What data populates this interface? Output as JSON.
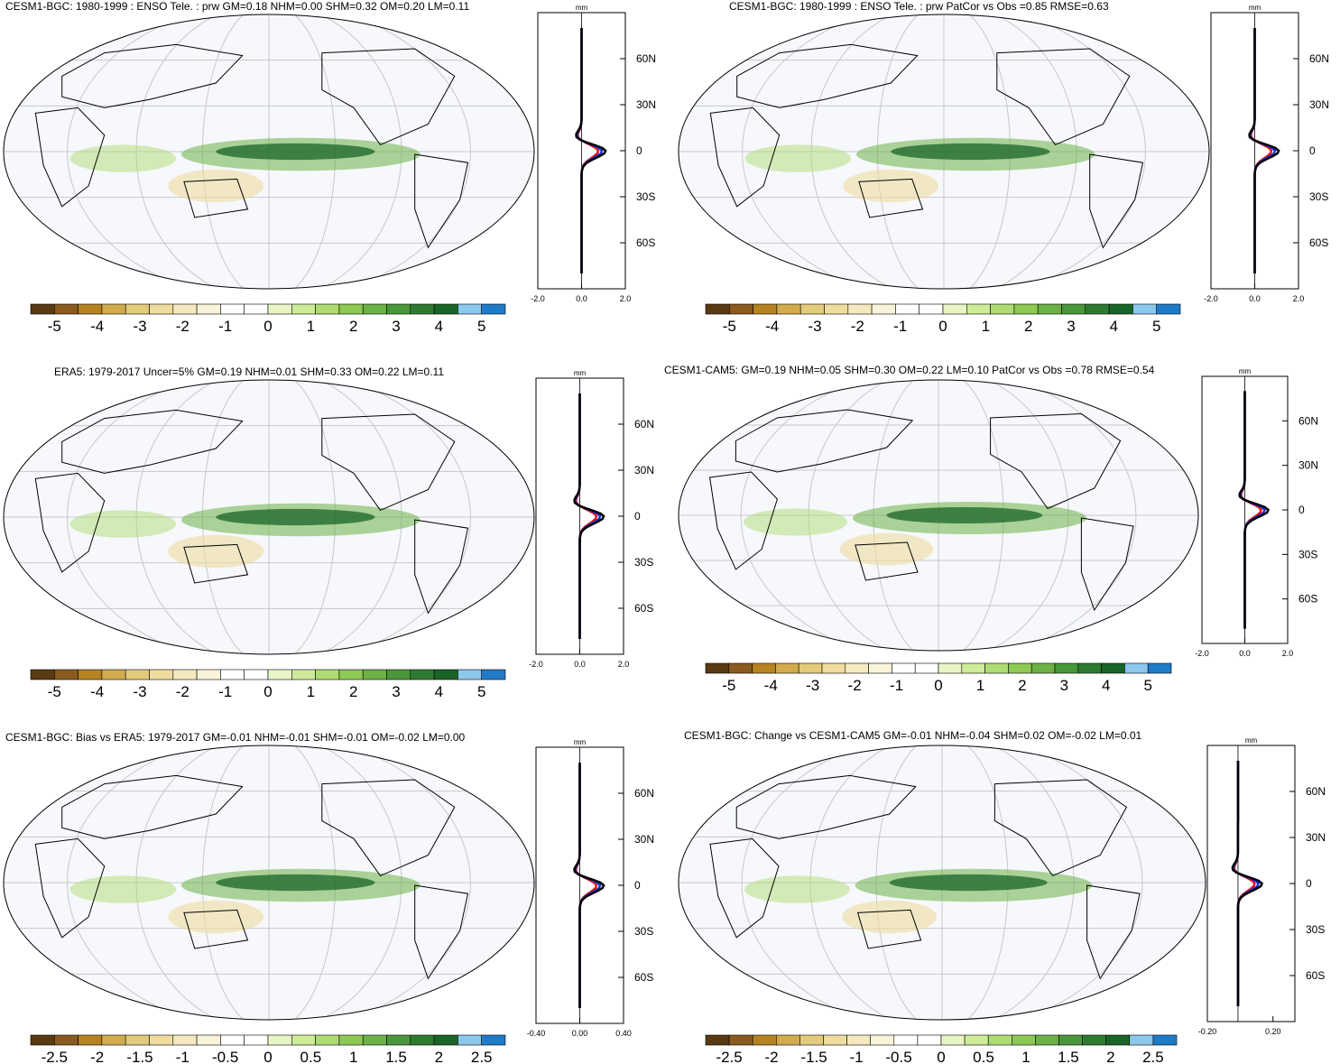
{
  "palette": {
    "colors": [
      "#5a3a12",
      "#8a5a1e",
      "#b5831f",
      "#d2ab4d",
      "#e3cb7c",
      "#efdc9f",
      "#f5e9bf",
      "#f9f3da",
      "#ffffff",
      "#ffffff",
      "#e7f5c5",
      "#cdeb99",
      "#aedb72",
      "#8dc953",
      "#6cb145",
      "#4a963a",
      "#2f7a31",
      "#196427",
      "#8cc7ec",
      "#1f7bc8"
    ],
    "ocean": "#f6f8fc",
    "grid": "#c8c8c8",
    "obs_line": "#000000",
    "red_line": "#ee1111",
    "blue_line": "#1133dd"
  },
  "panels": [
    {
      "title": "CESM1-BGC: 1980-1999 : ENSO Tele. : prw GM=0.18 NHM=0.00 SHM=0.32 OM=0.20 LM=0.11",
      "colorbar_labels": [
        "-5",
        "-4",
        "-3",
        "-2",
        "-1",
        "0",
        "1",
        "2",
        "3",
        "4",
        "5"
      ],
      "profile": {
        "unit": "mm",
        "x_ticks": [
          "-2.0",
          "0.0",
          "2.0"
        ],
        "lat_ticks": [
          "60N",
          "30N",
          "0",
          "30S",
          "60S"
        ]
      }
    },
    {
      "title": "CESM1-BGC: 1980-1999 : ENSO Tele. : prw PatCor vs Obs =0.85 RMSE=0.63",
      "colorbar_labels": [
        "-5",
        "-4",
        "-3",
        "-2",
        "-1",
        "0",
        "1",
        "2",
        "3",
        "4",
        "5"
      ],
      "profile": {
        "unit": "mm",
        "x_ticks": [
          "-2.0",
          "0.0",
          "2.0"
        ],
        "lat_ticks": [
          "60N",
          "30N",
          "0",
          "30S",
          "60S"
        ]
      }
    },
    {
      "title": "ERA5: 1979-2017 Uncer=5% GM=0.19 NHM=0.01 SHM=0.33 OM=0.22 LM=0.11",
      "colorbar_labels": [
        "-5",
        "-4",
        "-3",
        "-2",
        "-1",
        "0",
        "1",
        "2",
        "3",
        "4",
        "5"
      ],
      "profile": {
        "unit": "mm",
        "x_ticks": [
          "-2.0",
          "0.0",
          "2.0"
        ],
        "lat_ticks": [
          "60N",
          "30N",
          "0",
          "30S",
          "60S"
        ]
      }
    },
    {
      "title": "CESM1-CAM5: GM=0.19 NHM=0.05 SHM=0.30 OM=0.22 LM=0.10 PatCor vs Obs =0.78 RMSE=0.54",
      "colorbar_labels": [
        "-5",
        "-4",
        "-3",
        "-2",
        "-1",
        "0",
        "1",
        "2",
        "3",
        "4",
        "5"
      ],
      "profile": {
        "unit": "mm",
        "x_ticks": [
          "-2.0",
          "0.0",
          "2.0"
        ],
        "lat_ticks": [
          "60N",
          "30N",
          "0",
          "30S",
          "60S"
        ]
      }
    },
    {
      "title": "CESM1-BGC: Bias vs ERA5: 1979-2017 GM=-0.01 NHM=-0.01 SHM=-0.01 OM=-0.02 LM=0.00",
      "colorbar_labels": [
        "-2.5",
        "-2",
        "-1.5",
        "-1",
        "-0.5",
        "0",
        "0.5",
        "1",
        "1.5",
        "2",
        "2.5"
      ],
      "profile": {
        "unit": "mm",
        "x_ticks": [
          "-0.40",
          "0.00",
          "0.40"
        ],
        "lat_ticks": [
          "60N",
          "30N",
          "0",
          "30S",
          "60S"
        ]
      }
    },
    {
      "title": "CESM1-BGC: Change vs CESM1-CAM5 GM=-0.01 NHM=-0.04 SHM=0.02 OM=-0.02 LM=0.01",
      "colorbar_labels": [
        "-2.5",
        "-2",
        "-1.5",
        "-1",
        "-0.5",
        "0",
        "0.5",
        "1",
        "1.5",
        "2",
        "2.5"
      ],
      "profile": {
        "unit": "mm",
        "x_ticks": [
          "-0.20",
          "0.20"
        ],
        "lat_ticks": [
          "60N",
          "30N",
          "0",
          "30S",
          "60S"
        ]
      }
    }
  ]
}
